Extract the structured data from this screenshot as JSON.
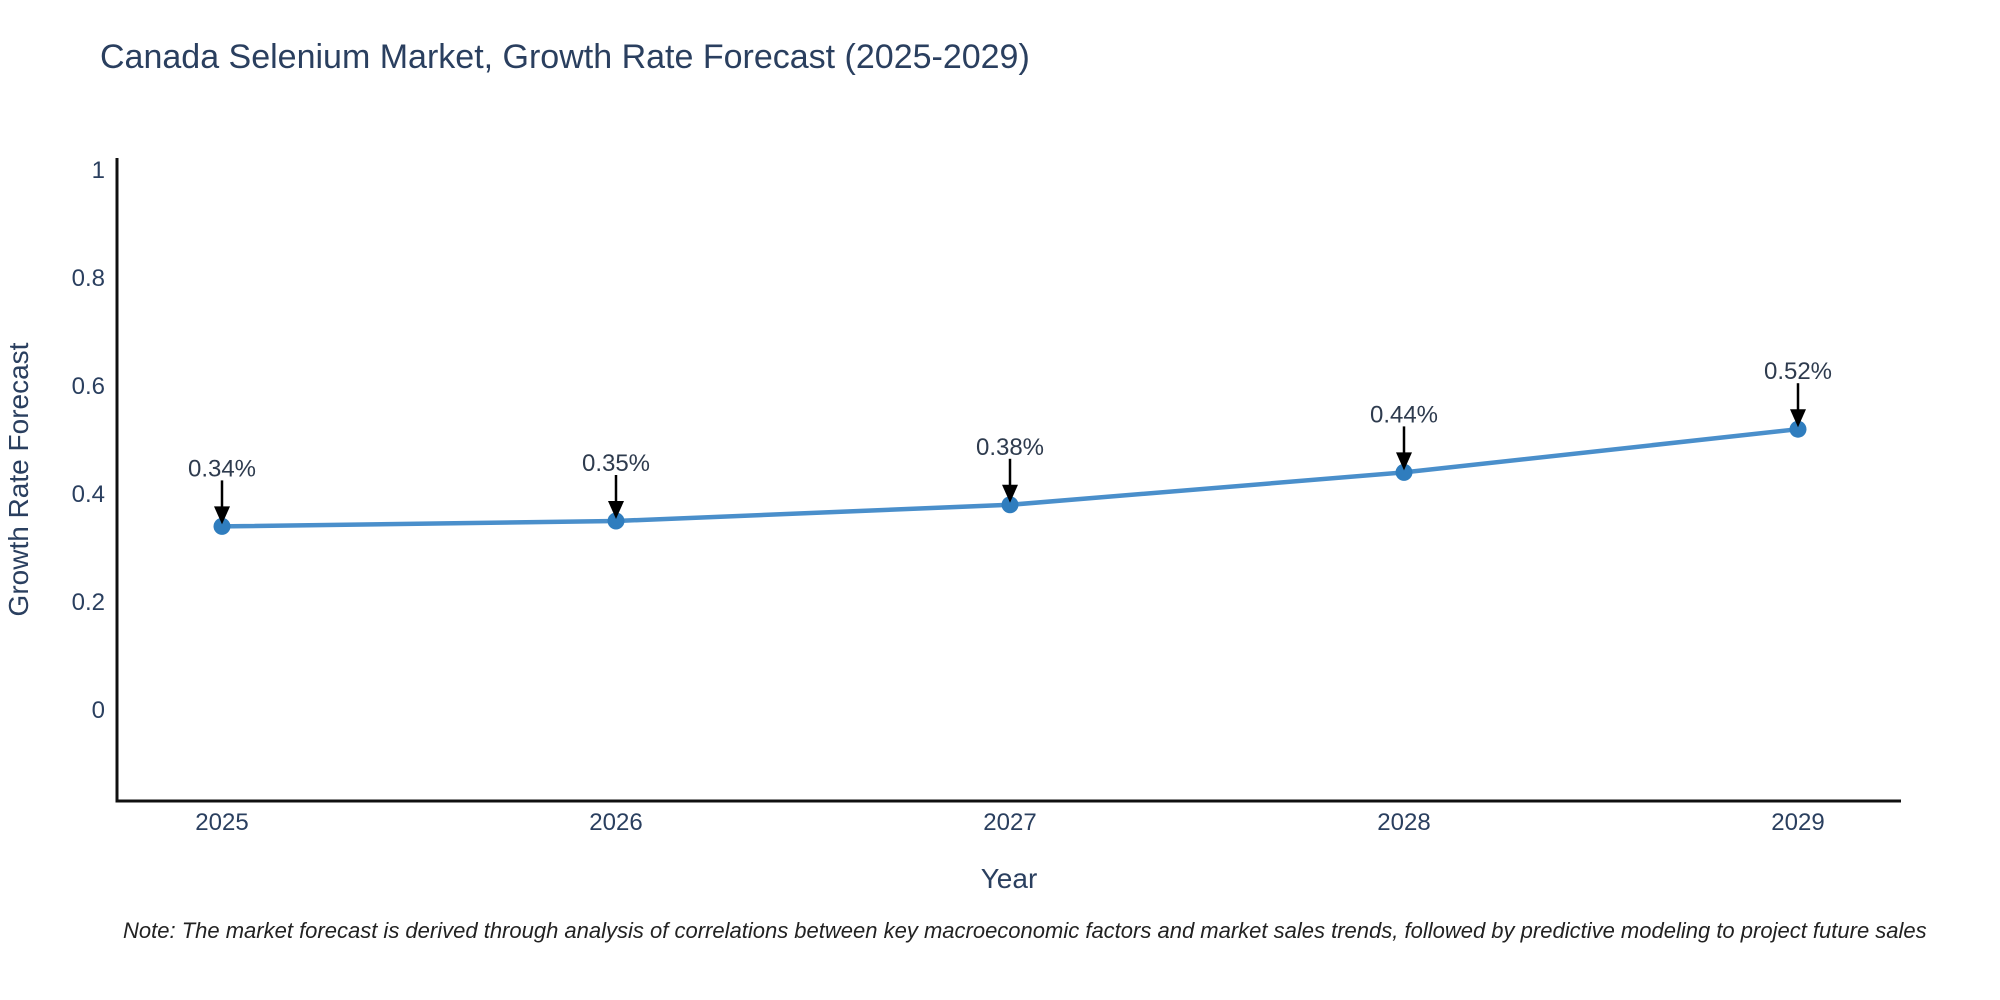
{
  "page": {
    "title": "Canada Selenium Market, Growth Rate Forecast (2025-2029)",
    "note": "Note: The market forecast is derived through analysis of correlations between key macroeconomic factors and market sales trends, followed by predictive modeling to project future sales"
  },
  "chart_data": {
    "type": "line",
    "title": "Canada Selenium Market, Growth Rate Forecast (2025-2029)",
    "xlabel": "Year",
    "ylabel": "Growth Rate Forecast",
    "categories": [
      "2025",
      "2026",
      "2027",
      "2028",
      "2029"
    ],
    "series": [
      {
        "name": "Growth Rate Forecast",
        "values": [
          0.34,
          0.35,
          0.38,
          0.44,
          0.52
        ],
        "point_labels": [
          "0.34%",
          "0.35%",
          "0.38%",
          "0.44%",
          "0.52%"
        ]
      }
    ],
    "ylim": [
      -0.17,
      1.02
    ],
    "yticks": [
      0,
      0.2,
      0.4,
      0.6,
      0.8,
      1
    ],
    "ytick_labels": [
      "0",
      "0.2",
      "0.4",
      "0.6",
      "0.8",
      "1"
    ],
    "grid": false,
    "legend": false,
    "colors": {
      "line": "#4a8fcb",
      "marker": "#2f7dbe",
      "arrow": "#000000",
      "axis": "#101010",
      "text": "#2a3f5f",
      "label": "#2e3b4e",
      "note": "#222222"
    }
  }
}
